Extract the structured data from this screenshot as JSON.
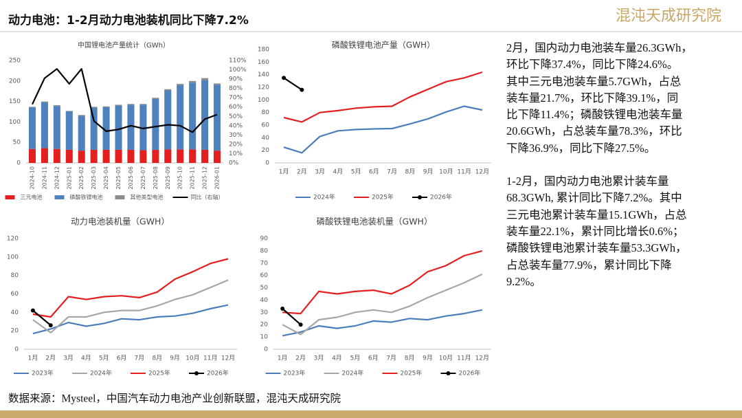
{
  "header": {
    "title": "动力电池：1-2月动力电池装机同比下降7.2%",
    "logo": "混沌天成研究院"
  },
  "chart_data": [
    {
      "type": "bar",
      "stacked": true,
      "title": "中国锂电池产量统计（GWh）",
      "categories": [
        "2024-10",
        "2024-11",
        "2024-12",
        "2025-01",
        "2025-02",
        "2025-03",
        "2025-04",
        "2025-05",
        "2025-06",
        "2025-07",
        "2025-08",
        "2025-09",
        "2025-10",
        "2025-11",
        "2025-12",
        "2026-01"
      ],
      "series": [
        {
          "name": "三元电池",
          "color": "#e41f1f",
          "values": [
            34,
            36,
            34,
            32,
            30,
            32,
            32,
            32,
            32,
            31,
            32,
            33,
            33,
            33,
            32,
            30
          ]
        },
        {
          "name": "磷酸铁锂电池",
          "color": "#4f81bd",
          "values": [
            101,
            112,
            105,
            94,
            85,
            103,
            104,
            108,
            110,
            111,
            124,
            144,
            157,
            163,
            170,
            161
          ]
        },
        {
          "name": "其他类型电池",
          "color": "#8c8c8c",
          "values": [
            2,
            2,
            2,
            1,
            2,
            2,
            2,
            2,
            2,
            2,
            3,
            3,
            3,
            4,
            5,
            3
          ]
        },
        {
          "name": "同比（右轴）",
          "color": "#000000",
          "type": "line",
          "axis": "y2",
          "values": [
            63,
            91,
            101,
            85,
            101,
            45,
            34,
            36,
            40,
            37,
            39,
            41,
            40,
            33,
            47,
            52
          ]
        }
      ],
      "ylim": [
        0,
        250
      ],
      "yticks": [
        0,
        50,
        100,
        150,
        200,
        250
      ],
      "y2lim": [
        0,
        110
      ],
      "y2ticks": [
        {
          "value": 0,
          "label": "0%"
        },
        {
          "value": 10,
          "label": "10%"
        },
        {
          "value": 20,
          "label": "20%"
        },
        {
          "value": 30,
          "label": "30%"
        },
        {
          "value": 40,
          "label": "40%"
        },
        {
          "value": 50,
          "label": "50%"
        },
        {
          "value": 60,
          "label": "60%"
        },
        {
          "value": 70,
          "label": "70%"
        },
        {
          "value": 80,
          "label": "80%"
        },
        {
          "value": 90,
          "label": "90%"
        },
        {
          "value": 100,
          "label": "100%"
        },
        {
          "value": 110,
          "label": "110%"
        }
      ],
      "grid": false,
      "legend": "bottom"
    },
    {
      "type": "line",
      "title": "磷酸铁锂电池产量（GWH）",
      "categories": [
        "1月",
        "2月",
        "3月",
        "4月",
        "5月",
        "6月",
        "7月",
        "8月",
        "9月",
        "10月",
        "11月",
        "12月"
      ],
      "series": [
        {
          "name": "2024年",
          "color": "#4a7ebb",
          "values": [
            25,
            16,
            42,
            51,
            53,
            54,
            54.5,
            62,
            70,
            81,
            90,
            84
          ]
        },
        {
          "name": "2025年",
          "color": "#e41f1f",
          "values": [
            72,
            65,
            80,
            83,
            87,
            89,
            90,
            105,
            117,
            129,
            135,
            144
          ]
        },
        {
          "name": "2026年",
          "color": "#000000",
          "markers": true,
          "values": [
            135,
            116,
            null,
            null,
            null,
            null,
            null,
            null,
            null,
            null,
            null,
            null
          ]
        }
      ],
      "ylim": [
        0,
        180
      ],
      "yticks": [
        0,
        20,
        40,
        60,
        80,
        100,
        120,
        140,
        160,
        180
      ],
      "grid": false,
      "legend": "bottom"
    },
    {
      "type": "line",
      "title": "动力电池装机量（GWH）",
      "categories": [
        "1月",
        "2月",
        "3月",
        "4月",
        "5月",
        "6月",
        "7月",
        "8月",
        "9月",
        "10月",
        "11月",
        "12月"
      ],
      "series": [
        {
          "name": "2023年",
          "color": "#4a7ebb",
          "values": [
            17,
            22,
            29,
            25,
            28,
            33,
            32,
            35,
            36,
            39,
            44,
            48
          ]
        },
        {
          "name": "2024年",
          "color": "#a6a6a6",
          "values": [
            32,
            18,
            35,
            35,
            40,
            42,
            42,
            47,
            54,
            59,
            67,
            75
          ]
        },
        {
          "name": "2025年",
          "color": "#e41f1f",
          "values": [
            38,
            35,
            57,
            54,
            57,
            58,
            56,
            62,
            76,
            84,
            93,
            98
          ]
        },
        {
          "name": "2026年",
          "color": "#000000",
          "markers": true,
          "values": [
            42,
            26,
            null,
            null,
            null,
            null,
            null,
            null,
            null,
            null,
            null,
            null
          ]
        }
      ],
      "ylim": [
        0,
        120
      ],
      "yticks": [
        0,
        20,
        40,
        60,
        80,
        100,
        120
      ],
      "grid": false,
      "legend": "bottom"
    },
    {
      "type": "line",
      "title": "磷酸铁锂电池装机量（GWH）",
      "categories": [
        "1月",
        "2月",
        "3月",
        "4月",
        "5月",
        "6月",
        "7月",
        "8月",
        "9月",
        "10月",
        "11月",
        "12月"
      ],
      "series": [
        {
          "name": "2023年",
          "color": "#4a7ebb",
          "values": [
            11,
            14,
            19,
            17,
            19,
            23,
            22,
            25,
            24,
            27,
            29,
            32
          ]
        },
        {
          "name": "2024年",
          "color": "#a6a6a6",
          "values": [
            20,
            12,
            24,
            26,
            30,
            32,
            30,
            35,
            42,
            48,
            54,
            61
          ]
        },
        {
          "name": "2025年",
          "color": "#e41f1f",
          "values": [
            30,
            29,
            47,
            45,
            47,
            48,
            45,
            52,
            63,
            68,
            76,
            80
          ]
        },
        {
          "name": "2026年",
          "color": "#000000",
          "markers": true,
          "values": [
            33,
            20,
            null,
            null,
            null,
            null,
            null,
            null,
            null,
            null,
            null,
            null
          ]
        }
      ],
      "ylim": [
        0,
        90
      ],
      "yticks": [
        0,
        10,
        20,
        30,
        40,
        50,
        60,
        70,
        80,
        90
      ],
      "grid": false,
      "legend": "bottom"
    }
  ],
  "text": {
    "paragraphs": [
      [
        "2月，国内动力电池装车量26.3GWh，",
        "环比下降37.4%，同比下降24.6%。",
        "其中三元电池装车量5.7GWh，占总",
        "装车量21.7%，环比下降39.1%，同",
        "比下降11.4%；磷酸铁锂电池装车量",
        "20.6GWh，占总装车量78.3%，环比",
        "下降36.9%，同比下降27.5%。"
      ],
      [
        "1-2月，国内动力电池累计装车量",
        "68.3GWh, 累计同比下降7.2%。其中",
        "三元电池累计装车量15.1GWh，占总",
        "装车量22.1%，累计同比增长0.6%；",
        "磷酸铁锂电池累计装车量53.3GWh，",
        "占总装车量77.9%，累计同比下降",
        "9.2%。"
      ]
    ]
  },
  "source": "数据来源：Mysteel，中国汽车动力电池产业创新联盟，混沌天成研究院"
}
